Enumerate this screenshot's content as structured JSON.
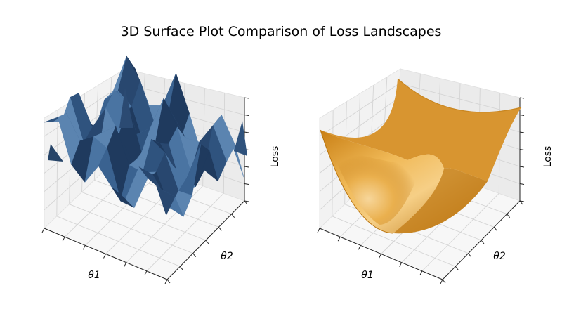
{
  "figure": {
    "title": "3D Surface Plot Comparison of Loss Landscapes"
  },
  "chart_data": [
    {
      "type": "surface",
      "style": "3d",
      "panel": "left",
      "xlabel": "θ1",
      "ylabel": "θ2",
      "zlabel": "Loss",
      "color": "#2c4c74",
      "surface": "rugged / noisy loss landscape with many local minima and sharp peaks",
      "grid": true,
      "tick_labels_shown": false
    },
    {
      "type": "surface",
      "style": "3d",
      "panel": "right",
      "xlabel": "θ1",
      "ylabel": "θ2",
      "zlabel": "Loss",
      "color": "#e3a33a",
      "surface": "smooth convex bowl-shaped (paraboloid) loss landscape",
      "grid": true,
      "tick_labels_shown": false
    }
  ]
}
